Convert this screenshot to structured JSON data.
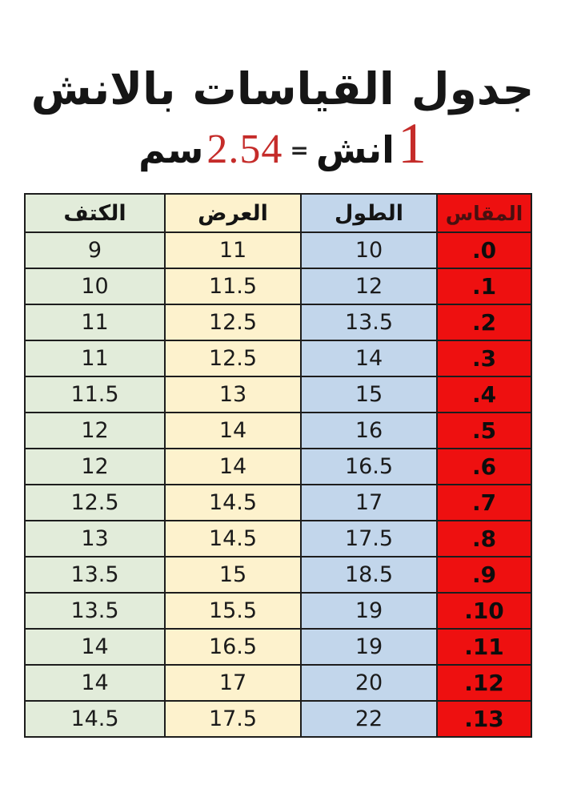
{
  "header": {
    "title": "جدول القياسات بالانش",
    "conversion": {
      "inch_value": "1",
      "inch_unit": "انش",
      "equals": "=",
      "cm_value": "2.54",
      "cm_unit": "سم"
    }
  },
  "colors": {
    "size_column_bg": "#ee1010",
    "length_column_bg": "#c2d6eb",
    "width_column_bg": "#fdf2cd",
    "shoulder_column_bg": "#e2ecda",
    "accent_red_text": "#c52c2a",
    "border": "#1d1d1d"
  },
  "table": {
    "columns": [
      {
        "key": "size",
        "label": "المقاس",
        "bg": "#ee1010"
      },
      {
        "key": "length",
        "label": "الطول",
        "bg": "#c2d6eb"
      },
      {
        "key": "width",
        "label": "العرض",
        "bg": "#fdf2cd"
      },
      {
        "key": "shoulder",
        "label": "الكتف",
        "bg": "#e2ecda"
      }
    ],
    "rows": [
      {
        "size": ".0",
        "length": "10",
        "width": "11",
        "shoulder": "9"
      },
      {
        "size": ".1",
        "length": "12",
        "width": "11.5",
        "shoulder": "10"
      },
      {
        "size": ".2",
        "length": "13.5",
        "width": "12.5",
        "shoulder": "11"
      },
      {
        "size": ".3",
        "length": "14",
        "width": "12.5",
        "shoulder": "11"
      },
      {
        "size": ".4",
        "length": "15",
        "width": "13",
        "shoulder": "11.5"
      },
      {
        "size": ".5",
        "length": "16",
        "width": "14",
        "shoulder": "12"
      },
      {
        "size": ".6",
        "length": "16.5",
        "width": "14",
        "shoulder": "12"
      },
      {
        "size": ".7",
        "length": "17",
        "width": "14.5",
        "shoulder": "12.5"
      },
      {
        "size": ".8",
        "length": "17.5",
        "width": "14.5",
        "shoulder": "13"
      },
      {
        "size": ".9",
        "length": "18.5",
        "width": "15",
        "shoulder": "13.5"
      },
      {
        "size": ".10",
        "length": "19",
        "width": "15.5",
        "shoulder": "13.5"
      },
      {
        "size": ".11",
        "length": "19",
        "width": "16.5",
        "shoulder": "14"
      },
      {
        "size": ".12",
        "length": "20",
        "width": "17",
        "shoulder": "14"
      },
      {
        "size": ".13",
        "length": "22",
        "width": "17.5",
        "shoulder": "14.5"
      }
    ]
  }
}
